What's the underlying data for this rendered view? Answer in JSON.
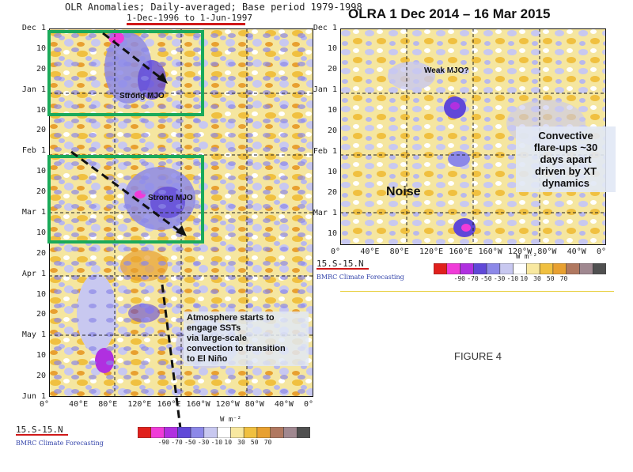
{
  "left_panel": {
    "title": "OLR Anomalies; Daily-averaged; Base period 1979-1998",
    "subtitle": "1-Dec-1996 to 1-Jun-1997",
    "y_ticks": [
      "Dec 1",
      "10",
      "20",
      "Jan 1",
      "10",
      "20",
      "Feb 1",
      "10",
      "20",
      "Mar 1",
      "10",
      "20",
      "Apr 1",
      "10",
      "20",
      "May 1",
      "10",
      "20",
      "Jun 1"
    ],
    "x_ticks": [
      "0°",
      "40°E",
      "80°E",
      "120°E",
      "160°E",
      "160°W",
      "120°W",
      "80°W",
      "40°W",
      "0°"
    ],
    "lat_band": "15.S-15.N",
    "credit": "BMRC Climate Forecasting",
    "annotations": {
      "mjo1": "Strong MJO",
      "mjo2": "Strong MJO",
      "sst_note_lines": [
        "Atmosphere starts to",
        "engage SSTs",
        "via large-scale",
        "convection to transition",
        "to El Niño"
      ]
    },
    "colorbar": {
      "unit": "W m⁻²",
      "labels": [
        "-90",
        "-70",
        "-50",
        "-30",
        "-10",
        "10",
        "30",
        "50",
        "70"
      ]
    }
  },
  "right_panel": {
    "title": "OLRA 1 Dec 2014 – 16 Mar 2015",
    "y_ticks": [
      "Dec 1",
      "10",
      "20",
      "Jan 1",
      "10",
      "20",
      "Feb 1",
      "10",
      "20",
      "Mar 1",
      "10"
    ],
    "x_ticks": [
      "0°",
      "40°E",
      "80°E",
      "120°E",
      "160°E",
      "160°W",
      "120°W",
      "80°W",
      "40°W",
      "0°"
    ],
    "lat_band": "15.S-15.N",
    "credit": "BMRC Climate Forecasting",
    "annotations": {
      "weak_mjo": "Weak MJO?",
      "noise": "Noise",
      "flare_lines": [
        "Convective",
        "flare-ups ~30",
        "days apart",
        "driven by XT",
        "dynamics"
      ]
    },
    "colorbar": {
      "unit": "W m⁻²",
      "labels": [
        "-90",
        "-70",
        "-50",
        "-30",
        "-10",
        "10",
        "30",
        "50",
        "70"
      ]
    }
  },
  "figure_label": "FIGURE 4",
  "colors": {
    "colorbar": [
      "#e0201c",
      "#f03cd8",
      "#b030e0",
      "#6048d8",
      "#8c88e8",
      "#c8c8f0",
      "#ffffff",
      "#f8e8a0",
      "#f0c040",
      "#e8a030",
      "#b07860",
      "#a08890",
      "#505050"
    ],
    "green_box": "#1aaa5a",
    "red_circle": "#c02020"
  }
}
